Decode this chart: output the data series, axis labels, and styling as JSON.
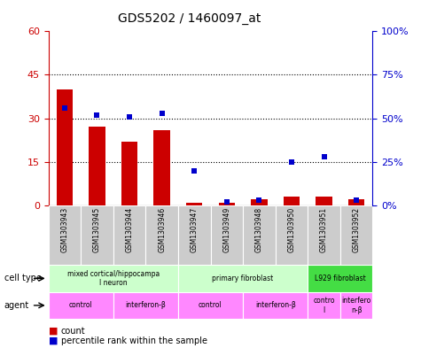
{
  "title": "GDS5202 / 1460097_at",
  "samples": [
    "GSM1303943",
    "GSM1303945",
    "GSM1303944",
    "GSM1303946",
    "GSM1303947",
    "GSM1303949",
    "GSM1303948",
    "GSM1303950",
    "GSM1303951",
    "GSM1303952"
  ],
  "counts": [
    40,
    27,
    22,
    26,
    1,
    1,
    2,
    3,
    3,
    2
  ],
  "percentile_ranks": [
    56,
    52,
    51,
    53,
    20,
    2,
    3,
    25,
    28,
    3
  ],
  "ylim_left": [
    0,
    60
  ],
  "ylim_right": [
    0,
    100
  ],
  "yticks_left": [
    0,
    15,
    30,
    45,
    60
  ],
  "yticks_right": [
    0,
    25,
    50,
    75,
    100
  ],
  "ytick_labels_right": [
    "0%",
    "25%",
    "50%",
    "75%",
    "100%"
  ],
  "cell_type_groups": [
    {
      "label": "mixed cortical/hippocampa\nl neuron",
      "start": 0,
      "end": 3,
      "color": "#CCFFCC"
    },
    {
      "label": "primary fibroblast",
      "start": 4,
      "end": 7,
      "color": "#CCFFCC"
    },
    {
      "label": "L929 fibroblast",
      "start": 8,
      "end": 9,
      "color": "#44DD44"
    }
  ],
  "agent_groups": [
    {
      "label": "control",
      "start": 0,
      "end": 1,
      "color": "#FF88FF"
    },
    {
      "label": "interferon-β",
      "start": 2,
      "end": 3,
      "color": "#FF88FF"
    },
    {
      "label": "control",
      "start": 4,
      "end": 5,
      "color": "#FF88FF"
    },
    {
      "label": "interferon-β",
      "start": 6,
      "end": 7,
      "color": "#FF88FF"
    },
    {
      "label": "contro\nl",
      "start": 8,
      "end": 8,
      "color": "#FF88FF"
    },
    {
      "label": "interfero\nn-β",
      "start": 9,
      "end": 9,
      "color": "#FF88FF"
    }
  ],
  "bar_color": "#CC0000",
  "dot_color": "#0000CC",
  "grid_color": "#000000",
  "bg_color": "#FFFFFF",
  "sample_bg_color": "#CCCCCC",
  "left_axis_color": "#CC0000",
  "right_axis_color": "#0000CC",
  "plot_bg": "#FFFFFF"
}
